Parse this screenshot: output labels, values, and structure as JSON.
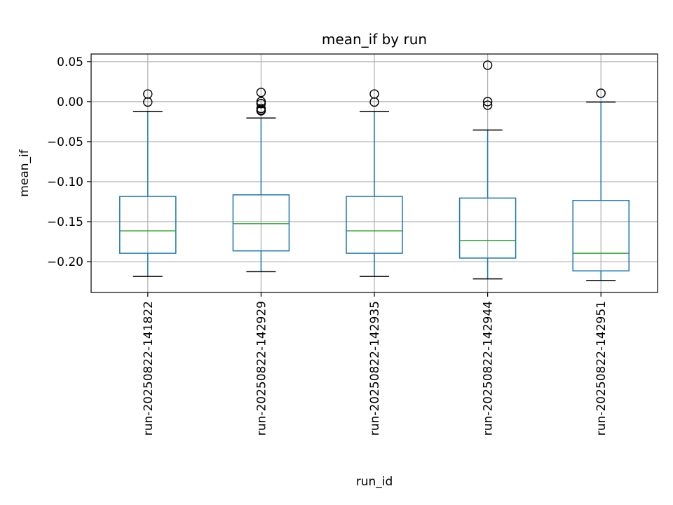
{
  "chart_data": {
    "type": "boxplot",
    "title": "mean_if by run",
    "xlabel": "run_id",
    "ylabel": "mean_if",
    "ylim": [
      -0.2385,
      0.0595
    ],
    "yticks": [
      0.05,
      0.0,
      -0.05,
      -0.1,
      -0.15,
      -0.2
    ],
    "ytick_labels": [
      "0.05",
      "0.00",
      "−0.05",
      "−0.10",
      "−0.15",
      "−0.20"
    ],
    "grid": true,
    "colors": {
      "box": "#1f77b4",
      "median": "#2ca02c",
      "whisker_cap": "#000000",
      "grid": "#b0b0b0",
      "flier": "#000000"
    },
    "categories": [
      "run-20250822-141822",
      "run-20250822-142929",
      "run-20250822-142935",
      "run-20250822-142944",
      "run-20250822-142951"
    ],
    "boxes": [
      {
        "q1": -0.1895,
        "median": -0.1615,
        "q3": -0.1185,
        "whisker_low": -0.2185,
        "whisker_high": -0.0122,
        "fliers": [
          0.0095,
          -0.0005
        ]
      },
      {
        "q1": -0.1865,
        "median": -0.1525,
        "q3": -0.1165,
        "whisker_low": -0.2125,
        "whisker_high": -0.0205,
        "fliers": [
          0.0115,
          0.0,
          -0.0025,
          -0.0085,
          -0.0105,
          -0.0115
        ]
      },
      {
        "q1": -0.1895,
        "median": -0.1615,
        "q3": -0.1185,
        "whisker_low": -0.2185,
        "whisker_high": -0.0122,
        "fliers": [
          0.0095,
          -0.0005
        ]
      },
      {
        "q1": -0.1955,
        "median": -0.1735,
        "q3": -0.1205,
        "whisker_low": -0.2215,
        "whisker_high": -0.0355,
        "fliers": [
          0.0455,
          0.0,
          -0.0045
        ]
      },
      {
        "q1": -0.2115,
        "median": -0.1895,
        "q3": -0.1235,
        "whisker_low": -0.2235,
        "whisker_high": -0.0005,
        "fliers": [
          0.0105
        ]
      }
    ]
  }
}
